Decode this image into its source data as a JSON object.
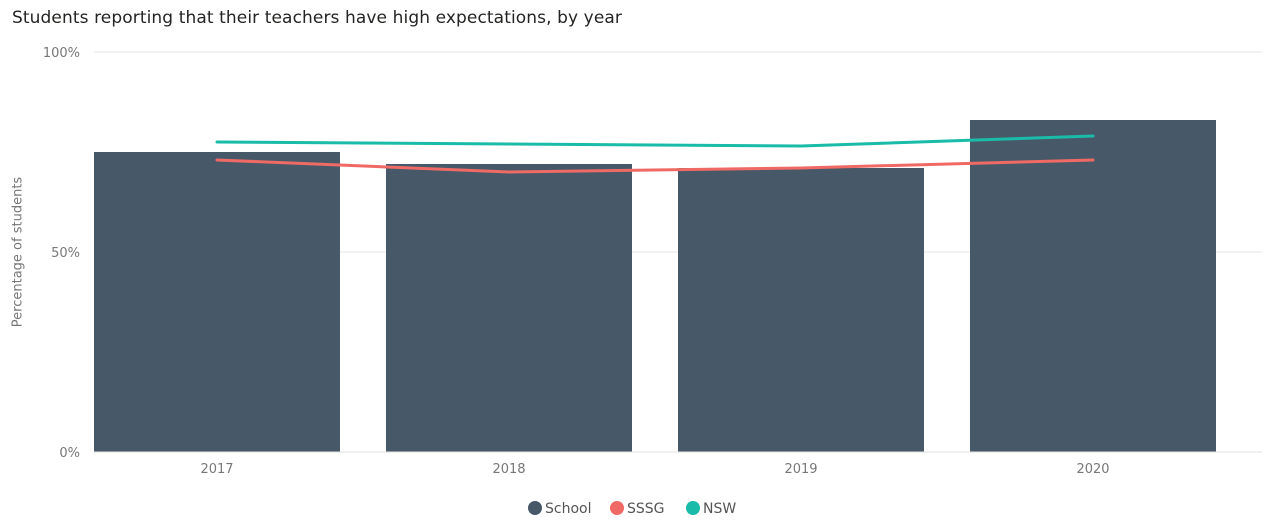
{
  "chart_data": {
    "type": "bar",
    "title": "Students reporting that their teachers have high expectations, by year",
    "xlabel": "",
    "ylabel": "Percentage of students",
    "categories": [
      "2017",
      "2018",
      "2019",
      "2020"
    ],
    "ylim": [
      0,
      100
    ],
    "yticks": [
      "0%",
      "50%",
      "100%"
    ],
    "grid": true,
    "legend_position": "bottom",
    "series": [
      {
        "name": "School",
        "kind": "bar",
        "color": "#475869",
        "values": [
          75,
          72,
          71,
          83
        ]
      },
      {
        "name": "SSSG",
        "kind": "line",
        "color": "#F06A65",
        "values": [
          73,
          70,
          71,
          73
        ]
      },
      {
        "name": "NSW",
        "kind": "line",
        "color": "#1ABBA8",
        "values": [
          77.5,
          77,
          76.5,
          79
        ]
      }
    ]
  }
}
